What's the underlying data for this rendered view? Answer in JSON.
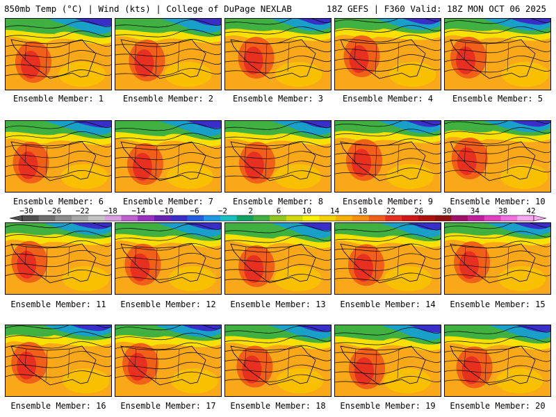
{
  "header": {
    "left_title": "850mb Temp (°C) | Wind (kts) | College of DuPage NEXLAB",
    "right_title": "18Z GEFS | F360 Valid: 18Z MON OCT 06 2025"
  },
  "members": [
    {
      "label": "Ensemble Member: 1"
    },
    {
      "label": "Ensemble Member: 2"
    },
    {
      "label": "Ensemble Member: 3"
    },
    {
      "label": "Ensemble Member: 4"
    },
    {
      "label": "Ensemble Member: 5"
    },
    {
      "label": "Ensemble Member: 6"
    },
    {
      "label": "Ensemble Member: 7"
    },
    {
      "label": "Ensemble Member: 8"
    },
    {
      "label": "Ensemble Member: 9"
    },
    {
      "label": "Ensemble Member: 10"
    },
    {
      "label": "Ensemble Member: 11"
    },
    {
      "label": "Ensemble Member: 12"
    },
    {
      "label": "Ensemble Member: 13"
    },
    {
      "label": "Ensemble Member: 14"
    },
    {
      "label": "Ensemble Member: 15"
    },
    {
      "label": "Ensemble Member: 16"
    },
    {
      "label": "Ensemble Member: 17"
    },
    {
      "label": "Ensemble Member: 18"
    },
    {
      "label": "Ensemble Member: 19"
    },
    {
      "label": "Ensemble Member: 20"
    }
  ],
  "colorbar": {
    "ticks": [
      "−30",
      "−26",
      "−22",
      "−18",
      "−14",
      "−10",
      "−6",
      "−2",
      "2",
      "6",
      "10",
      "14",
      "18",
      "22",
      "26",
      "30",
      "34",
      "38",
      "42"
    ],
    "colors": [
      "#505050",
      "#6e6e6e",
      "#8c8c8c",
      "#a8a8a8",
      "#c4c4c4",
      "#d8a0e0",
      "#c060d0",
      "#9a30c0",
      "#6a20b0",
      "#3a2ec8",
      "#2060e0",
      "#2098e8",
      "#18c0c0",
      "#10a060",
      "#40b040",
      "#90c820",
      "#d0d810",
      "#f8f000",
      "#f8d000",
      "#f8b000",
      "#f89010",
      "#f06018",
      "#e83020",
      "#d01818",
      "#b01010",
      "#901010",
      "#a0106a",
      "#c020a0",
      "#e040c0",
      "#f070e0",
      "#f8a8f0"
    ]
  }
}
